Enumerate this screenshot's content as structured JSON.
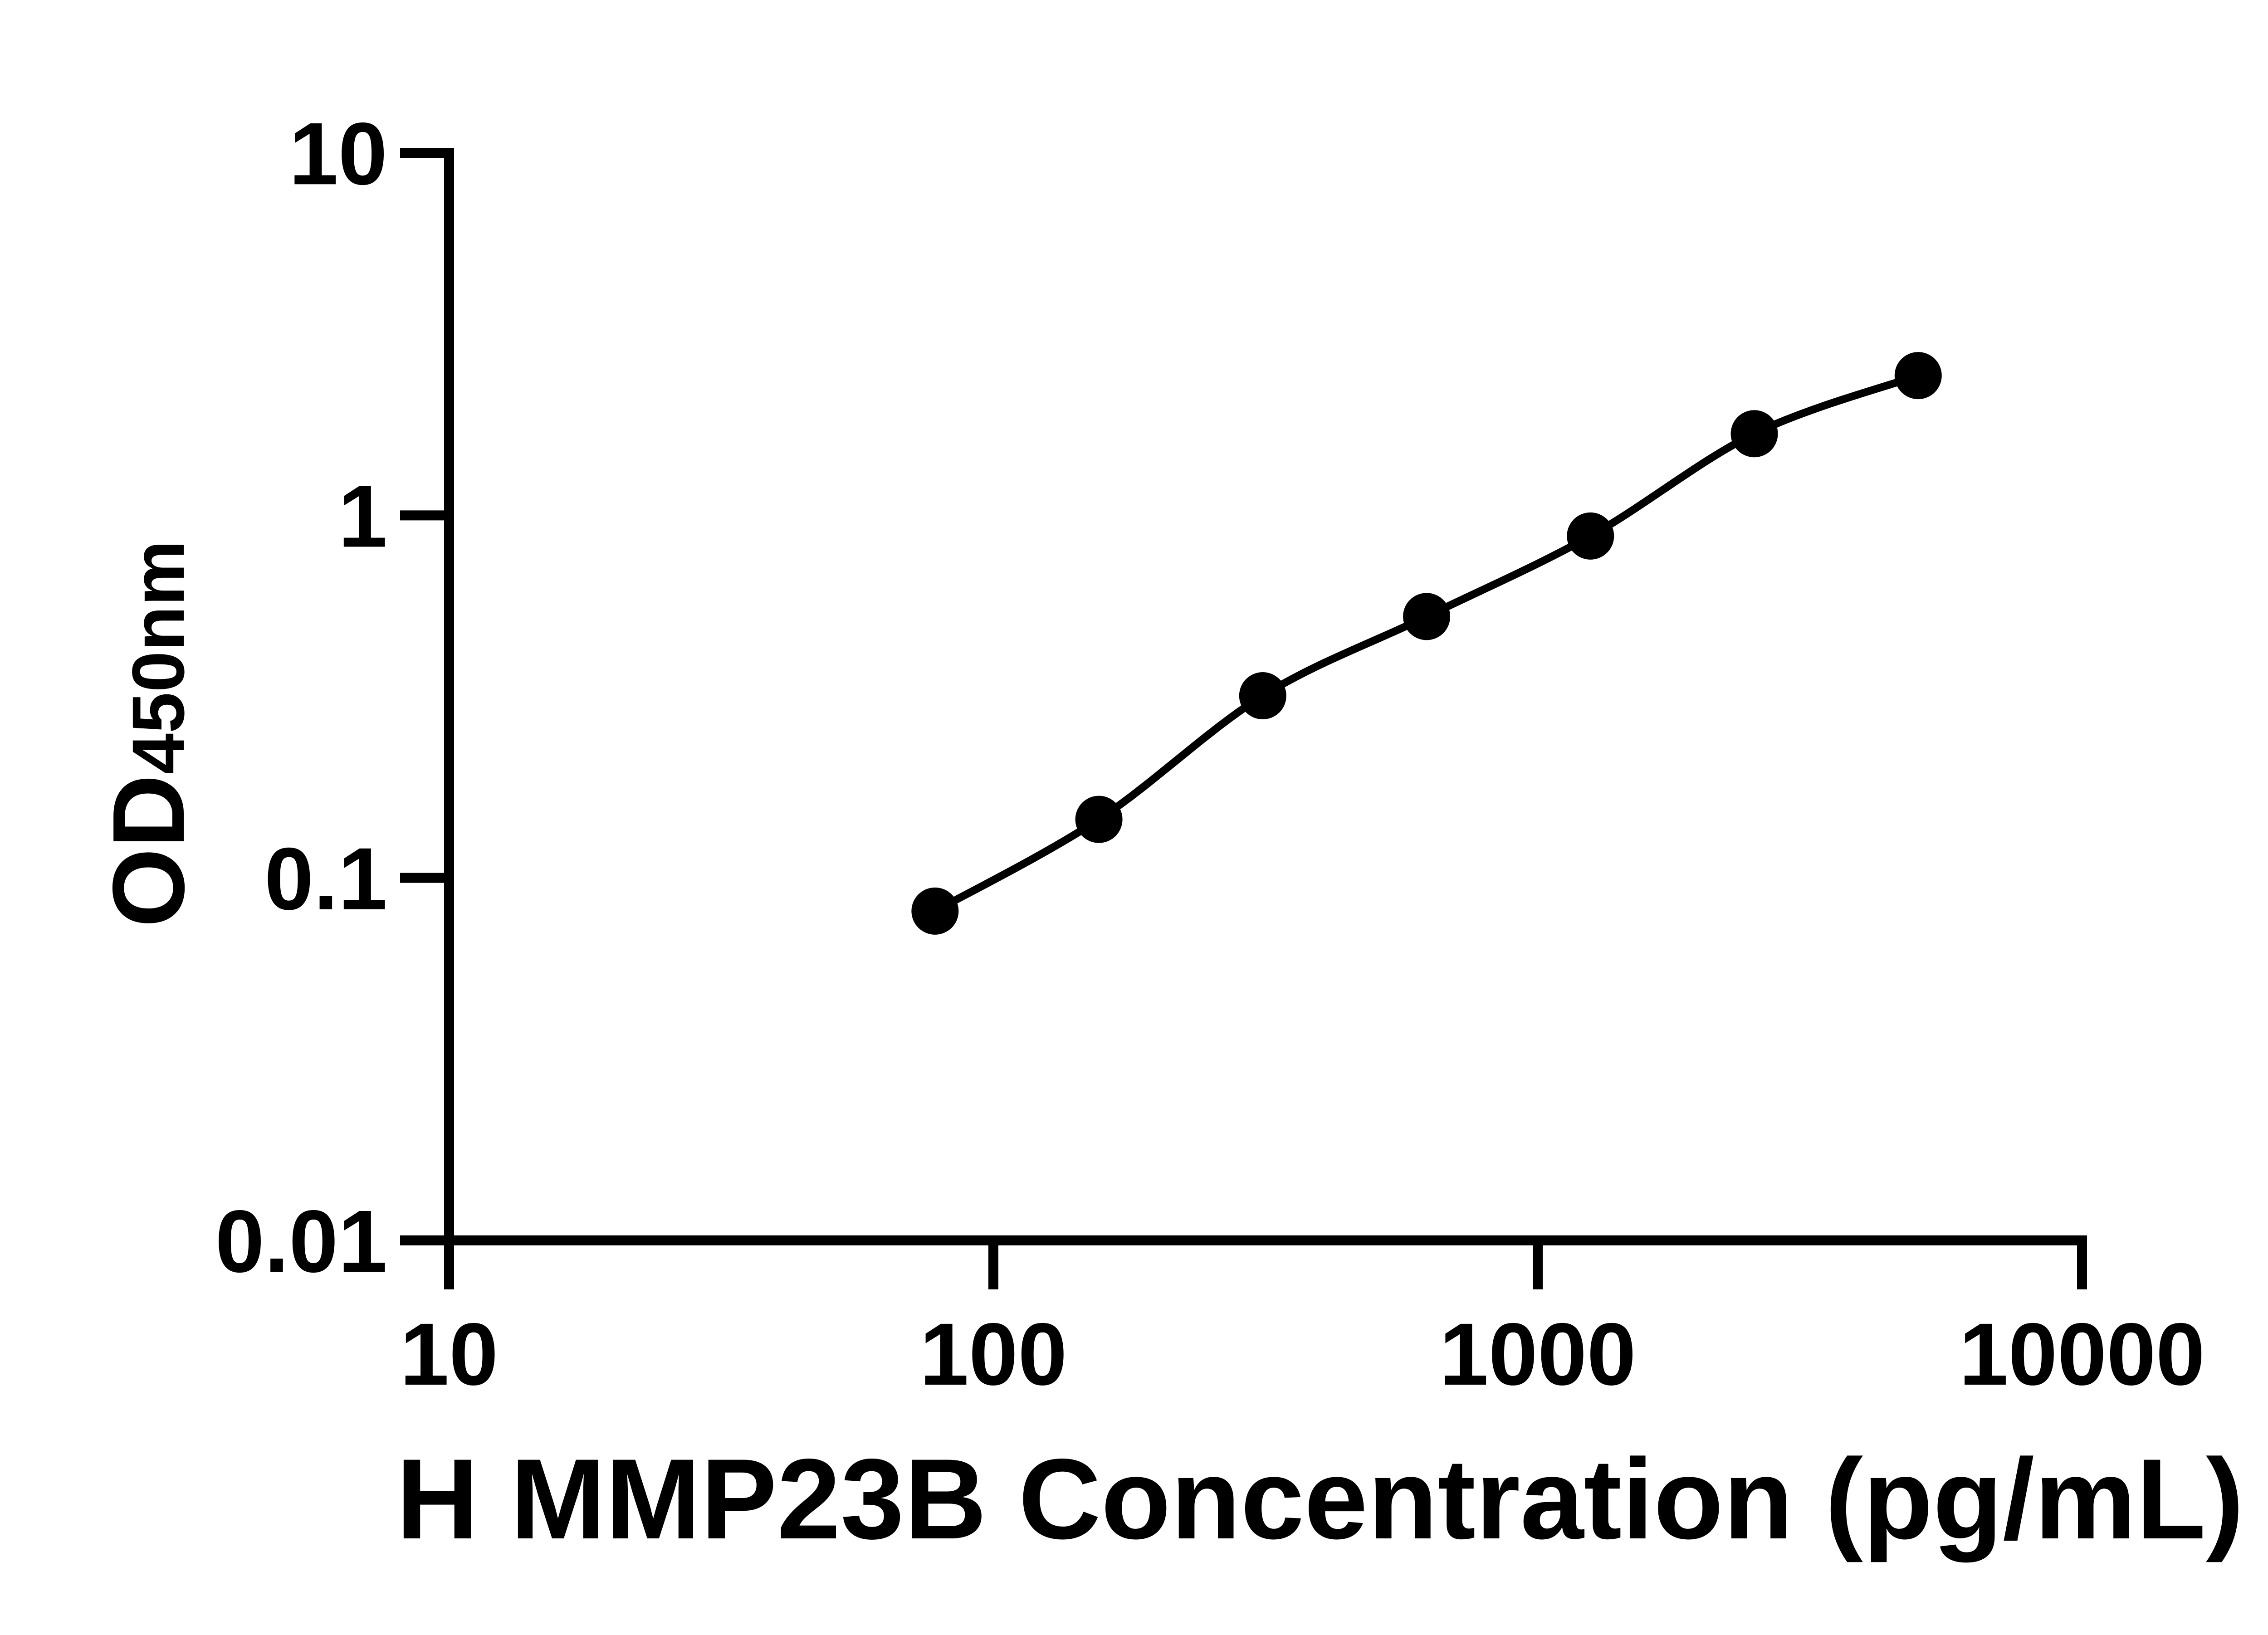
{
  "figure": {
    "background_color": "#ffffff",
    "ink_color": "#000000"
  },
  "chart_data": {
    "type": "scatter",
    "title": "",
    "xlabel": "H MMP23B Concentration (pg/mL)",
    "ylabel_main": "OD",
    "ylabel_sub": "450nm",
    "x_scale": "log10",
    "y_scale": "log10",
    "xlim": [
      10,
      10000
    ],
    "ylim": [
      0.01,
      10
    ],
    "grid": false,
    "legend_position": "none",
    "x_ticks": [
      {
        "value": 10,
        "label": "10"
      },
      {
        "value": 100,
        "label": "100"
      },
      {
        "value": 1000,
        "label": "1000"
      },
      {
        "value": 10000,
        "label": "10000"
      }
    ],
    "y_ticks": [
      {
        "value": 10,
        "label": "10"
      },
      {
        "value": 1,
        "label": "1"
      },
      {
        "value": 0.1,
        "label": "0.1"
      },
      {
        "value": 0.01,
        "label": "0.01"
      }
    ],
    "series": [
      {
        "name": "standard-curve",
        "marker": "filled-circle",
        "color": "#000000",
        "line": "smooth-fit",
        "x": [
          78.125,
          156.25,
          312.5,
          625,
          1250,
          2500,
          5000
        ],
        "y": [
          0.081,
          0.145,
          0.318,
          0.526,
          0.877,
          1.68,
          2.43
        ]
      }
    ]
  }
}
